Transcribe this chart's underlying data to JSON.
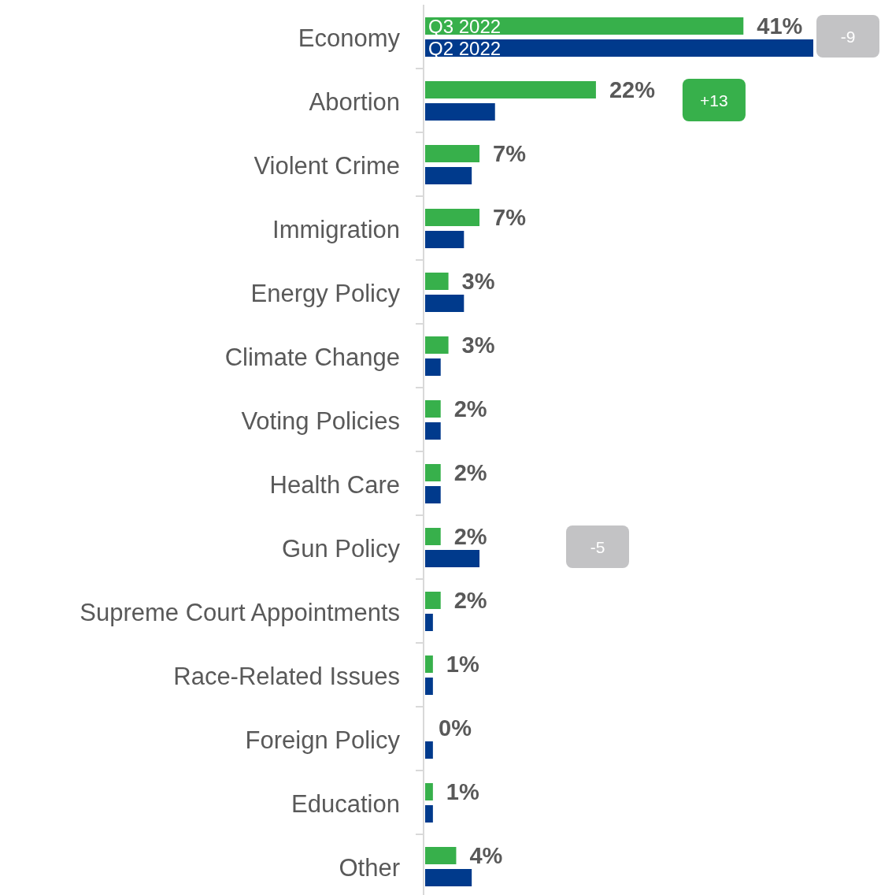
{
  "chart_data": {
    "type": "bar",
    "orientation": "horizontal",
    "categories": [
      "Economy",
      "Abortion",
      "Violent Crime",
      "Immigration",
      "Energy Policy",
      "Climate Change",
      "Voting Policies",
      "Health Care",
      "Gun Policy",
      "Supreme Court Appointments",
      "Race-Related Issues",
      "Foreign Policy",
      "Education",
      "Other"
    ],
    "series": [
      {
        "name": "Q3 2022",
        "color": "#37b04b",
        "values": [
          41,
          22,
          7,
          7,
          3,
          3,
          2,
          2,
          2,
          2,
          1,
          0,
          1,
          4
        ],
        "value_labels": [
          "41%",
          "22%",
          "7%",
          "7%",
          "3%",
          "3%",
          "2%",
          "2%",
          "2%",
          "2%",
          "1%",
          "0%",
          "1%",
          "4%"
        ]
      },
      {
        "name": "Q2 2022",
        "color": "#003a8c",
        "values": [
          50,
          9,
          6,
          5,
          5,
          2,
          2,
          2,
          7,
          1,
          1,
          1,
          1,
          6
        ]
      }
    ],
    "annotations": [
      "-9",
      "+13",
      "-5"
    ]
  }
}
